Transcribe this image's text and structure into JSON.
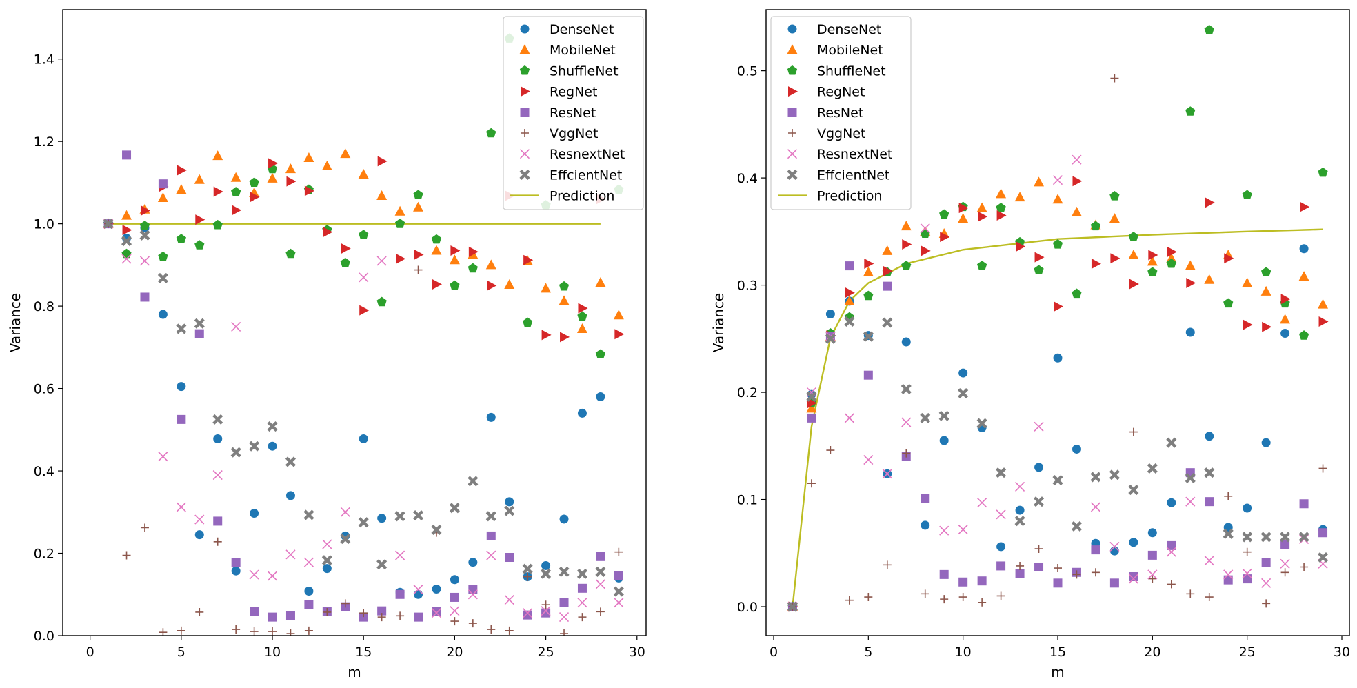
{
  "chart_data": [
    {
      "type": "scatter",
      "xlabel": "m",
      "ylabel": "Variance",
      "xlim": [
        -1.5,
        30.5
      ],
      "ylim": [
        0,
        1.52
      ],
      "xticks": [
        0,
        5,
        10,
        15,
        20,
        25,
        30
      ],
      "yticks": [
        0.0,
        0.2,
        0.4,
        0.6,
        0.8,
        1.0,
        1.2,
        1.4
      ],
      "ytick_labels": [
        "0.0",
        "0.2",
        "0.4",
        "0.6",
        "0.8",
        "1.0",
        "1.2",
        "1.4"
      ],
      "x": [
        1,
        2,
        3,
        4,
        5,
        6,
        7,
        8,
        9,
        10,
        11,
        12,
        13,
        14,
        15,
        16,
        17,
        18,
        19,
        20,
        21,
        22,
        23,
        24,
        25,
        26,
        27,
        28,
        29
      ],
      "legend_position": "upper right",
      "series": [
        {
          "name": "DenseNet",
          "color": "#1f77b4",
          "marker": "circle",
          "values": [
            1.0,
            0.965,
            0.99,
            0.78,
            0.605,
            0.245,
            0.478,
            0.157,
            0.297,
            0.46,
            0.34,
            0.108,
            0.163,
            0.242,
            0.478,
            0.285,
            0.105,
            0.1,
            0.113,
            0.136,
            0.178,
            0.53,
            0.325,
            0.143,
            0.17,
            0.283,
            0.54,
            0.58,
            0.14
          ]
        },
        {
          "name": "MobileNet",
          "color": "#ff7f0e",
          "marker": "triangle-up",
          "values": [
            1.0,
            1.02,
            1.035,
            1.063,
            1.083,
            1.107,
            1.165,
            1.112,
            1.075,
            1.11,
            1.133,
            1.16,
            1.14,
            1.17,
            1.12,
            1.068,
            1.03,
            1.04,
            0.935,
            0.912,
            0.925,
            0.9,
            0.852,
            0.91,
            0.843,
            0.813,
            0.745,
            0.857,
            0.778
          ]
        },
        {
          "name": "ShuffleNet",
          "color": "#2ca02c",
          "marker": "pentagon",
          "values": [
            1.0,
            0.927,
            0.995,
            0.92,
            0.963,
            0.948,
            0.997,
            1.077,
            1.1,
            1.133,
            0.927,
            1.083,
            0.985,
            0.905,
            0.973,
            0.81,
            1.0,
            1.07,
            0.962,
            0.85,
            0.892,
            1.22,
            1.45,
            0.76,
            1.045,
            0.848,
            0.775,
            0.683,
            1.083
          ]
        },
        {
          "name": "RegNet",
          "color": "#d62728",
          "marker": "triangle-right",
          "values": [
            1.0,
            0.985,
            1.032,
            1.09,
            1.13,
            1.01,
            1.078,
            1.033,
            1.065,
            1.147,
            1.103,
            1.08,
            0.98,
            0.94,
            0.79,
            1.152,
            0.915,
            0.925,
            0.853,
            0.935,
            0.932,
            0.85,
            1.068,
            0.912,
            0.73,
            0.725,
            0.795,
            1.06,
            0.732
          ]
        },
        {
          "name": "ResNet",
          "color": "#9467bd",
          "marker": "square",
          "values": [
            1.0,
            1.167,
            0.822,
            1.097,
            0.525,
            0.733,
            0.278,
            0.178,
            0.058,
            0.045,
            0.048,
            0.075,
            0.058,
            0.07,
            0.045,
            0.06,
            0.1,
            0.045,
            0.058,
            0.093,
            0.113,
            0.242,
            0.19,
            0.05,
            0.055,
            0.08,
            0.115,
            0.192,
            0.145
          ]
        },
        {
          "name": "VggNet",
          "color": "#8c564b",
          "marker": "plus",
          "values": [
            1.0,
            0.195,
            0.262,
            0.008,
            0.012,
            0.057,
            0.228,
            0.015,
            0.01,
            0.01,
            0.005,
            0.012,
            0.057,
            0.078,
            0.055,
            0.045,
            0.048,
            0.888,
            0.25,
            0.035,
            0.03,
            0.015,
            0.012,
            0.143,
            0.075,
            0.005,
            0.045,
            0.058,
            0.203
          ]
        },
        {
          "name": "ResnextNet",
          "color": "#e377c2",
          "marker": "x",
          "values": [
            1.0,
            0.915,
            0.91,
            0.435,
            0.312,
            0.282,
            0.39,
            0.75,
            0.148,
            0.145,
            0.197,
            0.178,
            0.222,
            0.3,
            0.87,
            0.91,
            0.195,
            0.112,
            0.055,
            0.06,
            0.1,
            0.195,
            0.087,
            0.055,
            0.06,
            0.045,
            0.08,
            0.125,
            0.08
          ]
        },
        {
          "name": "EffcientNet",
          "color": "#7f7f7f",
          "marker": "x-filled",
          "values": [
            1.0,
            0.958,
            0.972,
            0.868,
            0.745,
            0.758,
            0.525,
            0.445,
            0.46,
            0.508,
            0.422,
            0.293,
            0.183,
            0.235,
            0.275,
            0.173,
            0.29,
            0.292,
            0.257,
            0.31,
            0.375,
            0.29,
            0.303,
            0.162,
            0.15,
            0.155,
            0.15,
            0.155,
            0.107
          ]
        }
      ],
      "prediction": {
        "name": "Prediction",
        "color": "#bcbd22",
        "x": [
          1,
          28
        ],
        "values": [
          1.0,
          1.0
        ]
      }
    },
    {
      "type": "scatter",
      "xlabel": "m",
      "ylabel": "Variance",
      "xlim": [
        -0.4,
        30.4
      ],
      "ylim": [
        -0.027,
        0.557
      ],
      "xticks": [
        0,
        5,
        10,
        15,
        20,
        25,
        30
      ],
      "yticks": [
        0.0,
        0.1,
        0.2,
        0.3,
        0.4,
        0.5
      ],
      "ytick_labels": [
        "0.0",
        "0.1",
        "0.2",
        "0.3",
        "0.4",
        "0.5"
      ],
      "x": [
        1,
        2,
        3,
        4,
        5,
        6,
        7,
        8,
        9,
        10,
        11,
        12,
        13,
        14,
        15,
        16,
        17,
        18,
        19,
        20,
        21,
        22,
        23,
        24,
        25,
        26,
        27,
        28,
        29
      ],
      "legend_position": "upper left",
      "series": [
        {
          "name": "DenseNet",
          "color": "#1f77b4",
          "marker": "circle",
          "values": [
            0.0,
            0.198,
            0.273,
            0.285,
            0.253,
            0.124,
            0.247,
            0.076,
            0.155,
            0.218,
            0.167,
            0.056,
            0.09,
            0.13,
            0.232,
            0.147,
            0.059,
            0.052,
            0.06,
            0.069,
            0.097,
            0.256,
            0.159,
            0.074,
            0.092,
            0.153,
            0.255,
            0.334,
            0.072
          ]
        },
        {
          "name": "MobileNet",
          "color": "#ff7f0e",
          "marker": "triangle-up",
          "values": [
            0.0,
            0.185,
            0.252,
            0.285,
            0.312,
            0.332,
            0.355,
            0.35,
            0.348,
            0.362,
            0.372,
            0.385,
            0.382,
            0.396,
            0.38,
            0.368,
            0.356,
            0.362,
            0.328,
            0.322,
            0.325,
            0.318,
            0.305,
            0.328,
            0.302,
            0.294,
            0.268,
            0.308,
            0.282
          ]
        },
        {
          "name": "ShuffleNet",
          "color": "#2ca02c",
          "marker": "pentagon",
          "values": [
            0.0,
            0.19,
            0.255,
            0.27,
            0.29,
            0.312,
            0.318,
            0.348,
            0.366,
            0.373,
            0.318,
            0.372,
            0.34,
            0.314,
            0.338,
            0.292,
            0.355,
            0.383,
            0.345,
            0.312,
            0.32,
            0.462,
            0.538,
            0.283,
            0.384,
            0.312,
            0.283,
            0.253,
            0.405
          ]
        },
        {
          "name": "RegNet",
          "color": "#d62728",
          "marker": "triangle-right",
          "values": [
            0.0,
            0.19,
            0.253,
            0.293,
            0.32,
            0.313,
            0.338,
            0.332,
            0.345,
            0.372,
            0.364,
            0.365,
            0.336,
            0.326,
            0.28,
            0.397,
            0.32,
            0.325,
            0.301,
            0.328,
            0.331,
            0.302,
            0.377,
            0.325,
            0.263,
            0.261,
            0.287,
            0.373,
            0.266
          ]
        },
        {
          "name": "ResNet",
          "color": "#9467bd",
          "marker": "square",
          "values": [
            0.0,
            0.176,
            0.252,
            0.318,
            0.216,
            0.299,
            0.14,
            0.101,
            0.03,
            0.023,
            0.024,
            0.038,
            0.031,
            0.037,
            0.022,
            0.032,
            0.053,
            0.022,
            0.028,
            0.048,
            0.057,
            0.125,
            0.098,
            0.025,
            0.026,
            0.041,
            0.058,
            0.096,
            0.069
          ]
        },
        {
          "name": "VggNet",
          "color": "#8c564b",
          "marker": "plus",
          "values": [
            0.0,
            0.115,
            0.146,
            0.006,
            0.009,
            0.039,
            0.143,
            0.012,
            0.007,
            0.009,
            0.004,
            0.01,
            0.038,
            0.054,
            0.036,
            0.03,
            0.032,
            0.493,
            0.163,
            0.026,
            0.021,
            0.012,
            0.009,
            0.103,
            0.051,
            0.003,
            0.032,
            0.037,
            0.129
          ]
        },
        {
          "name": "ResnextNet",
          "color": "#e377c2",
          "marker": "x",
          "values": [
            0.0,
            0.2,
            0.252,
            0.176,
            0.137,
            0.124,
            0.172,
            0.353,
            0.071,
            0.072,
            0.097,
            0.086,
            0.112,
            0.168,
            0.398,
            0.417,
            0.093,
            0.056,
            0.026,
            0.03,
            0.051,
            0.098,
            0.043,
            0.03,
            0.031,
            0.022,
            0.04,
            0.063,
            0.04
          ]
        },
        {
          "name": "EffcientNet",
          "color": "#7f7f7f",
          "marker": "x-filled",
          "values": [
            0.0,
            0.196,
            0.25,
            0.266,
            0.252,
            0.265,
            0.203,
            0.176,
            0.178,
            0.199,
            0.171,
            0.125,
            0.08,
            0.098,
            0.118,
            0.075,
            0.121,
            0.123,
            0.109,
            0.129,
            0.153,
            0.12,
            0.125,
            0.068,
            0.065,
            0.065,
            0.065,
            0.065,
            0.046
          ]
        }
      ],
      "prediction": {
        "name": "Prediction",
        "color": "#bcbd22",
        "curve": "saturating",
        "x": [
          1,
          2,
          3,
          4,
          5,
          7,
          10,
          15,
          20,
          25,
          29
        ],
        "values": [
          0.0,
          0.168,
          0.251,
          0.285,
          0.302,
          0.32,
          0.333,
          0.343,
          0.347,
          0.35,
          0.352
        ]
      }
    }
  ]
}
